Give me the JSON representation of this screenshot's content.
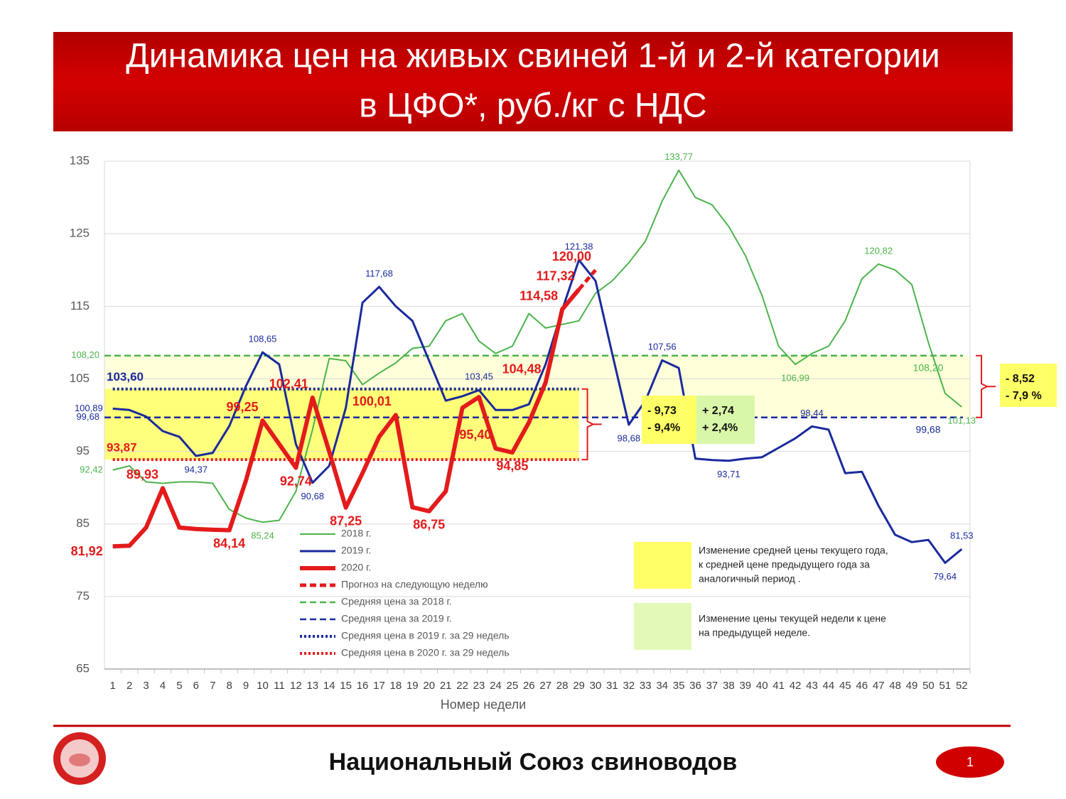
{
  "chart_data": {
    "type": "line",
    "title_lines": [
      "Динамика цен на живых свиней 1-й и 2-й категории",
      "в ЦФО*, руб./кг с НДС"
    ],
    "x_label": "Номер недели",
    "x": [
      1,
      2,
      3,
      4,
      5,
      6,
      7,
      8,
      9,
      10,
      11,
      12,
      13,
      14,
      15,
      16,
      17,
      18,
      19,
      20,
      21,
      22,
      23,
      24,
      25,
      26,
      27,
      28,
      29,
      30,
      31,
      32,
      33,
      34,
      35,
      36,
      37,
      38,
      39,
      40,
      41,
      42,
      43,
      44,
      45,
      46,
      47,
      48,
      49,
      50,
      51,
      52
    ],
    "xlim": [
      0.5,
      52.5
    ],
    "xticks": [
      1,
      2,
      3,
      4,
      5,
      6,
      7,
      8,
      9,
      10,
      11,
      12,
      13,
      14,
      15,
      16,
      17,
      18,
      19,
      20,
      21,
      22,
      23,
      24,
      25,
      26,
      27,
      28,
      29,
      30,
      31,
      32,
      33,
      34,
      35,
      36,
      37,
      38,
      39,
      40,
      41,
      42,
      43,
      44,
      45,
      46,
      47,
      48,
      49,
      50,
      51,
      52
    ],
    "ylim": [
      65,
      135
    ],
    "yticks": [
      65,
      75,
      85,
      95,
      105,
      115,
      125,
      135
    ],
    "grid": true,
    "series": [
      {
        "name": "2018 г.",
        "color": "#4cb34c",
        "style": "solid",
        "values": [
          92.42,
          93.0,
          90.8,
          90.6,
          90.8,
          90.8,
          90.6,
          87.0,
          85.8,
          85.24,
          85.5,
          89.5,
          98.0,
          107.8,
          107.5,
          104.2,
          105.8,
          107.2,
          109.2,
          109.5,
          113.0,
          114.0,
          110.2,
          108.5,
          109.5,
          114.0,
          112.0,
          112.5,
          113.0,
          116.8,
          118.5,
          121.0,
          124.0,
          129.5,
          133.77,
          130.0,
          129.0,
          126.0,
          122.0,
          116.5,
          109.5,
          106.99,
          108.5,
          109.5,
          113.0,
          118.8,
          120.82,
          120.0,
          118.0,
          110.0,
          103.0,
          101.13
        ],
        "value_labels": [
          "92,42",
          null,
          null,
          null,
          null,
          null,
          null,
          null,
          null,
          "85,24",
          null,
          null,
          null,
          null,
          null,
          null,
          null,
          null,
          null,
          null,
          null,
          null,
          null,
          null,
          null,
          null,
          null,
          null,
          null,
          null,
          null,
          null,
          null,
          null,
          "133,77",
          null,
          null,
          null,
          null,
          null,
          null,
          "106,99",
          null,
          null,
          null,
          null,
          "120,82",
          null,
          null,
          null,
          null,
          "101,13"
        ]
      },
      {
        "name": "2019 г.",
        "color": "#1a2a9c",
        "style": "solid",
        "values": [
          100.89,
          100.7,
          99.8,
          97.8,
          97.0,
          94.37,
          94.8,
          98.5,
          104.0,
          108.65,
          107.0,
          96.0,
          90.68,
          93.0,
          101.0,
          115.5,
          117.68,
          115.0,
          113.0,
          107.5,
          102.0,
          102.6,
          103.45,
          100.7,
          100.7,
          101.5,
          107.0,
          114.5,
          121.38,
          118.5,
          108.5,
          98.68,
          102.0,
          107.56,
          106.5,
          94.0,
          93.8,
          93.71,
          94.0,
          94.2,
          95.5,
          96.8,
          98.44,
          98.0,
          92.0,
          92.2,
          87.5,
          83.5,
          82.5,
          82.8,
          79.64,
          81.53
        ],
        "value_labels": [
          "100,89",
          null,
          null,
          null,
          null,
          "94,37",
          null,
          null,
          null,
          "108,65",
          null,
          null,
          "90,68",
          null,
          null,
          null,
          "117,68",
          null,
          null,
          null,
          null,
          null,
          "103,45",
          null,
          null,
          null,
          null,
          null,
          "121,38",
          null,
          null,
          "98,68",
          null,
          "107,56",
          null,
          null,
          null,
          "93,71",
          null,
          null,
          null,
          null,
          "98,44",
          null,
          null,
          null,
          null,
          null,
          null,
          null,
          "79,64",
          "81,53"
        ]
      },
      {
        "name": "2020 г.",
        "color": "#e31b1b",
        "style": "solid",
        "values": [
          81.92,
          82.0,
          84.5,
          89.93,
          84.5,
          84.3,
          84.2,
          84.14,
          91.0,
          99.25,
          96.0,
          92.74,
          102.41,
          95.0,
          87.25,
          92.0,
          97.0,
          100.01,
          87.3,
          86.75,
          89.5,
          101.0,
          102.5,
          95.4,
          94.85,
          99.0,
          104.48,
          114.58,
          117.32,
          null,
          null,
          null,
          null,
          null,
          null,
          null,
          null,
          null,
          null,
          null,
          null,
          null,
          null,
          null,
          null,
          null,
          null,
          null,
          null,
          null,
          null,
          null
        ],
        "value_labels": [
          "81,92",
          null,
          null,
          "89,93",
          null,
          null,
          null,
          "84,14",
          null,
          "99,25",
          null,
          "92,74",
          "102,41",
          null,
          "87,25",
          null,
          null,
          "100,01",
          null,
          "86,75",
          null,
          null,
          null,
          "95,40",
          "94,85",
          null,
          "104,48",
          "114,58",
          "117,32",
          null,
          null,
          null,
          null,
          null,
          null,
          null,
          null,
          null,
          null,
          null,
          null,
          null,
          null,
          null,
          null,
          null,
          null,
          null,
          null,
          null,
          null,
          null
        ]
      },
      {
        "name": "Прогноз на следующую неделю",
        "color": "#e31b1b",
        "style": "dashed",
        "values": [
          null,
          null,
          null,
          null,
          null,
          null,
          null,
          null,
          null,
          null,
          null,
          null,
          null,
          null,
          null,
          null,
          null,
          null,
          null,
          null,
          null,
          null,
          null,
          null,
          null,
          null,
          null,
          null,
          117.32,
          120.0,
          null,
          null,
          null,
          null,
          null,
          null,
          null,
          null,
          null,
          null,
          null,
          null,
          null,
          null,
          null,
          null,
          null,
          null,
          null,
          null,
          null,
          null
        ],
        "value_labels": [
          null,
          null,
          null,
          null,
          null,
          null,
          null,
          null,
          null,
          null,
          null,
          null,
          null,
          null,
          null,
          null,
          null,
          null,
          null,
          null,
          null,
          null,
          null,
          null,
          null,
          null,
          null,
          null,
          null,
          "120,00",
          null,
          null,
          null,
          null,
          null,
          null,
          null,
          null,
          null,
          null,
          null,
          null,
          null,
          null,
          null,
          null,
          null,
          null,
          null,
          null,
          null,
          null
        ]
      }
    ],
    "reference_lines": [
      {
        "name": "Средняя цена за 2018 г.",
        "color": "#4cb34c",
        "style": "dashed",
        "value": 108.2,
        "value_label": "108,20",
        "x_range": [
          1,
          52
        ]
      },
      {
        "name": "Средняя цена за 2019 г.",
        "color": "#1a2a9c",
        "style": "dashed",
        "value": 99.68,
        "value_label": "99,68",
        "x_range": [
          1,
          52
        ]
      },
      {
        "name": "Средняя цена в 2019 г. за 29 недель",
        "color": "#1a2a9c",
        "style": "dotted",
        "value": 103.6,
        "value_label": "103,60",
        "x_range": [
          1,
          29
        ]
      },
      {
        "name": "Средняя цена в 2020 г. за 29 недель",
        "color": "#e31b1b",
        "style": "dotted",
        "value": 93.87,
        "value_label": "93,87",
        "x_range": [
          1,
          29
        ]
      }
    ],
    "annotations": [
      {
        "lines": [
          "- 9,73",
          "- 9,4%"
        ],
        "color": "#ffff66"
      },
      {
        "lines": [
          "+ 2,74",
          "+ 2,4%"
        ],
        "color": "#d9f7a8"
      },
      {
        "lines": [
          "- 8,52",
          "- 7,9 %"
        ],
        "color": "#ffff66"
      }
    ],
    "key": [
      {
        "color": "#ffff66",
        "lines": [
          "Изменение средней цены текущего года,",
          "к средней цене предыдущего года за",
          "аналогичный период ."
        ]
      },
      {
        "color": "#e2f9b8",
        "lines": [
          "Изменение цены текущей недели к цене",
          "на предыдущей неделе."
        ]
      }
    ]
  },
  "footer": {
    "text": "Национальный Союз свиноводов",
    "page": "1"
  }
}
